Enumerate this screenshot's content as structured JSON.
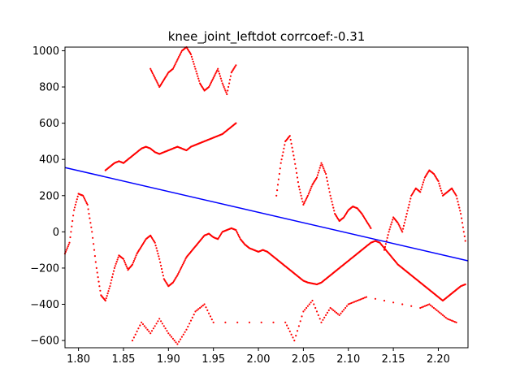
{
  "chart_data": {
    "type": "scatter",
    "title": "knee_joint_leftdot corrcoef:-0.31",
    "xlabel": "",
    "ylabel": "",
    "xlim": [
      1.785,
      2.233
    ],
    "ylim": [
      -640,
      1020
    ],
    "xticks": [
      "1.80",
      "1.85",
      "1.90",
      "1.95",
      "2.00",
      "2.05",
      "2.10",
      "2.15",
      "2.20"
    ],
    "yticks": [
      "-600",
      "-400",
      "-200",
      "0",
      "200",
      "400",
      "600",
      "800",
      "1000"
    ],
    "grid": false,
    "legend": "none",
    "colors": {
      "points": "#ff0000",
      "fit": "#0000ff",
      "axes": "#000000"
    },
    "fit_line": {
      "x": [
        1.785,
        2.233
      ],
      "y": [
        355,
        -160
      ]
    },
    "series": [
      {
        "values": [
          [
            1.785,
            -120
          ],
          [
            1.79,
            -60
          ],
          [
            1.795,
            120
          ],
          [
            1.8,
            210
          ],
          [
            1.805,
            200
          ],
          [
            1.81,
            150
          ],
          [
            1.815,
            0
          ],
          [
            1.82,
            -200
          ],
          [
            1.825,
            -350
          ],
          [
            1.83,
            -380
          ],
          [
            1.835,
            -300
          ],
          [
            1.84,
            -200
          ],
          [
            1.845,
            -130
          ],
          [
            1.85,
            -150
          ],
          [
            1.855,
            -210
          ],
          [
            1.86,
            -180
          ],
          [
            1.865,
            -120
          ],
          [
            1.87,
            -80
          ],
          [
            1.875,
            -40
          ],
          [
            1.88,
            -20
          ],
          [
            1.885,
            -60
          ],
          [
            1.89,
            -150
          ],
          [
            1.895,
            -260
          ],
          [
            1.9,
            -300
          ],
          [
            1.905,
            -280
          ],
          [
            1.91,
            -240
          ],
          [
            1.915,
            -190
          ],
          [
            1.92,
            -140
          ],
          [
            1.925,
            -110
          ],
          [
            1.93,
            -80
          ],
          [
            1.935,
            -50
          ],
          [
            1.94,
            -20
          ],
          [
            1.945,
            -10
          ],
          [
            1.95,
            -30
          ],
          [
            1.955,
            -40
          ],
          [
            1.96,
            0
          ],
          [
            1.965,
            10
          ],
          [
            1.97,
            20
          ],
          [
            1.975,
            10
          ],
          [
            1.98,
            -40
          ],
          [
            1.985,
            -70
          ],
          [
            1.99,
            -90
          ],
          [
            1.995,
            -100
          ],
          [
            2.0,
            -110
          ],
          [
            2.005,
            -100
          ],
          [
            2.01,
            -110
          ],
          [
            2.015,
            -130
          ],
          [
            2.02,
            -150
          ],
          [
            2.025,
            -170
          ],
          [
            2.03,
            -190
          ],
          [
            2.035,
            -210
          ],
          [
            2.04,
            -230
          ],
          [
            2.045,
            -250
          ],
          [
            2.05,
            -270
          ],
          [
            2.055,
            -280
          ],
          [
            2.06,
            -285
          ],
          [
            2.065,
            -290
          ],
          [
            2.07,
            -280
          ],
          [
            2.075,
            -260
          ],
          [
            2.08,
            -240
          ],
          [
            2.085,
            -220
          ],
          [
            2.09,
            -200
          ],
          [
            2.095,
            -180
          ],
          [
            2.1,
            -160
          ],
          [
            2.105,
            -140
          ],
          [
            2.11,
            -120
          ],
          [
            2.115,
            -100
          ],
          [
            2.12,
            -80
          ],
          [
            2.125,
            -60
          ],
          [
            2.13,
            -50
          ],
          [
            2.135,
            -60
          ],
          [
            2.14,
            -90
          ],
          [
            2.145,
            -120
          ],
          [
            2.15,
            -150
          ],
          [
            2.155,
            -180
          ],
          [
            2.16,
            -200
          ],
          [
            2.165,
            -220
          ],
          [
            2.17,
            -240
          ],
          [
            2.175,
            -260
          ],
          [
            2.18,
            -280
          ],
          [
            2.185,
            -300
          ],
          [
            2.19,
            -320
          ],
          [
            2.195,
            -340
          ],
          [
            2.2,
            -360
          ],
          [
            2.205,
            -380
          ],
          [
            2.21,
            -360
          ],
          [
            2.215,
            -340
          ],
          [
            2.22,
            -320
          ],
          [
            2.225,
            -300
          ],
          [
            2.23,
            -290
          ]
        ]
      },
      {
        "values": [
          [
            1.83,
            340
          ],
          [
            1.835,
            360
          ],
          [
            1.84,
            380
          ],
          [
            1.845,
            390
          ],
          [
            1.85,
            380
          ],
          [
            1.855,
            400
          ],
          [
            1.86,
            420
          ],
          [
            1.865,
            440
          ],
          [
            1.87,
            460
          ],
          [
            1.875,
            470
          ],
          [
            1.88,
            460
          ],
          [
            1.885,
            440
          ],
          [
            1.89,
            430
          ],
          [
            1.895,
            440
          ],
          [
            1.9,
            450
          ],
          [
            1.905,
            460
          ],
          [
            1.91,
            470
          ],
          [
            1.915,
            460
          ],
          [
            1.92,
            450
          ],
          [
            1.925,
            470
          ],
          [
            1.93,
            480
          ],
          [
            1.935,
            490
          ],
          [
            1.94,
            500
          ],
          [
            1.945,
            510
          ],
          [
            1.95,
            520
          ],
          [
            1.955,
            530
          ],
          [
            1.96,
            540
          ],
          [
            1.965,
            560
          ],
          [
            1.97,
            580
          ],
          [
            1.975,
            600
          ]
        ]
      },
      {
        "values": [
          [
            1.88,
            900
          ],
          [
            1.885,
            850
          ],
          [
            1.89,
            800
          ],
          [
            1.895,
            840
          ],
          [
            1.9,
            880
          ],
          [
            1.905,
            900
          ],
          [
            1.91,
            950
          ],
          [
            1.915,
            1000
          ],
          [
            1.92,
            1020
          ],
          [
            1.925,
            980
          ],
          [
            1.93,
            900
          ],
          [
            1.935,
            820
          ],
          [
            1.94,
            780
          ],
          [
            1.945,
            800
          ],
          [
            1.95,
            850
          ],
          [
            1.955,
            900
          ],
          [
            1.96,
            820
          ],
          [
            1.965,
            760
          ],
          [
            1.97,
            880
          ],
          [
            1.975,
            920
          ]
        ]
      },
      {
        "values": [
          [
            2.02,
            200
          ],
          [
            2.025,
            380
          ],
          [
            2.03,
            500
          ],
          [
            2.035,
            530
          ],
          [
            2.04,
            400
          ],
          [
            2.045,
            250
          ],
          [
            2.05,
            150
          ],
          [
            2.055,
            200
          ],
          [
            2.06,
            260
          ],
          [
            2.065,
            300
          ],
          [
            2.07,
            380
          ],
          [
            2.075,
            320
          ],
          [
            2.08,
            200
          ],
          [
            2.085,
            100
          ],
          [
            2.09,
            60
          ],
          [
            2.095,
            80
          ],
          [
            2.1,
            120
          ],
          [
            2.105,
            140
          ],
          [
            2.11,
            130
          ],
          [
            2.115,
            100
          ],
          [
            2.12,
            60
          ],
          [
            2.125,
            20
          ]
        ]
      },
      {
        "values": [
          [
            2.14,
            -100
          ],
          [
            2.145,
            0
          ],
          [
            2.15,
            80
          ],
          [
            2.155,
            50
          ],
          [
            2.16,
            0
          ],
          [
            2.165,
            100
          ],
          [
            2.17,
            200
          ],
          [
            2.175,
            240
          ],
          [
            2.18,
            220
          ],
          [
            2.185,
            300
          ],
          [
            2.19,
            340
          ],
          [
            2.195,
            320
          ],
          [
            2.2,
            280
          ],
          [
            2.205,
            200
          ],
          [
            2.21,
            220
          ],
          [
            2.215,
            240
          ],
          [
            2.22,
            200
          ],
          [
            2.225,
            100
          ],
          [
            2.23,
            -50
          ]
        ]
      },
      {
        "values": [
          [
            1.86,
            -600
          ],
          [
            1.87,
            -500
          ],
          [
            1.88,
            -560
          ],
          [
            1.89,
            -480
          ],
          [
            1.9,
            -560
          ],
          [
            1.91,
            -620
          ],
          [
            1.92,
            -540
          ],
          [
            1.93,
            -440
          ],
          [
            1.94,
            -400
          ],
          [
            1.95,
            -500
          ],
          [
            2.03,
            -500
          ],
          [
            2.04,
            -600
          ],
          [
            2.05,
            -440
          ],
          [
            2.06,
            -380
          ],
          [
            2.07,
            -500
          ],
          [
            2.08,
            -420
          ],
          [
            2.09,
            -460
          ],
          [
            2.1,
            -400
          ],
          [
            2.11,
            -380
          ],
          [
            2.12,
            -360
          ],
          [
            2.18,
            -420
          ],
          [
            2.19,
            -400
          ],
          [
            2.2,
            -440
          ],
          [
            2.21,
            -480
          ],
          [
            2.22,
            -500
          ]
        ]
      }
    ]
  }
}
